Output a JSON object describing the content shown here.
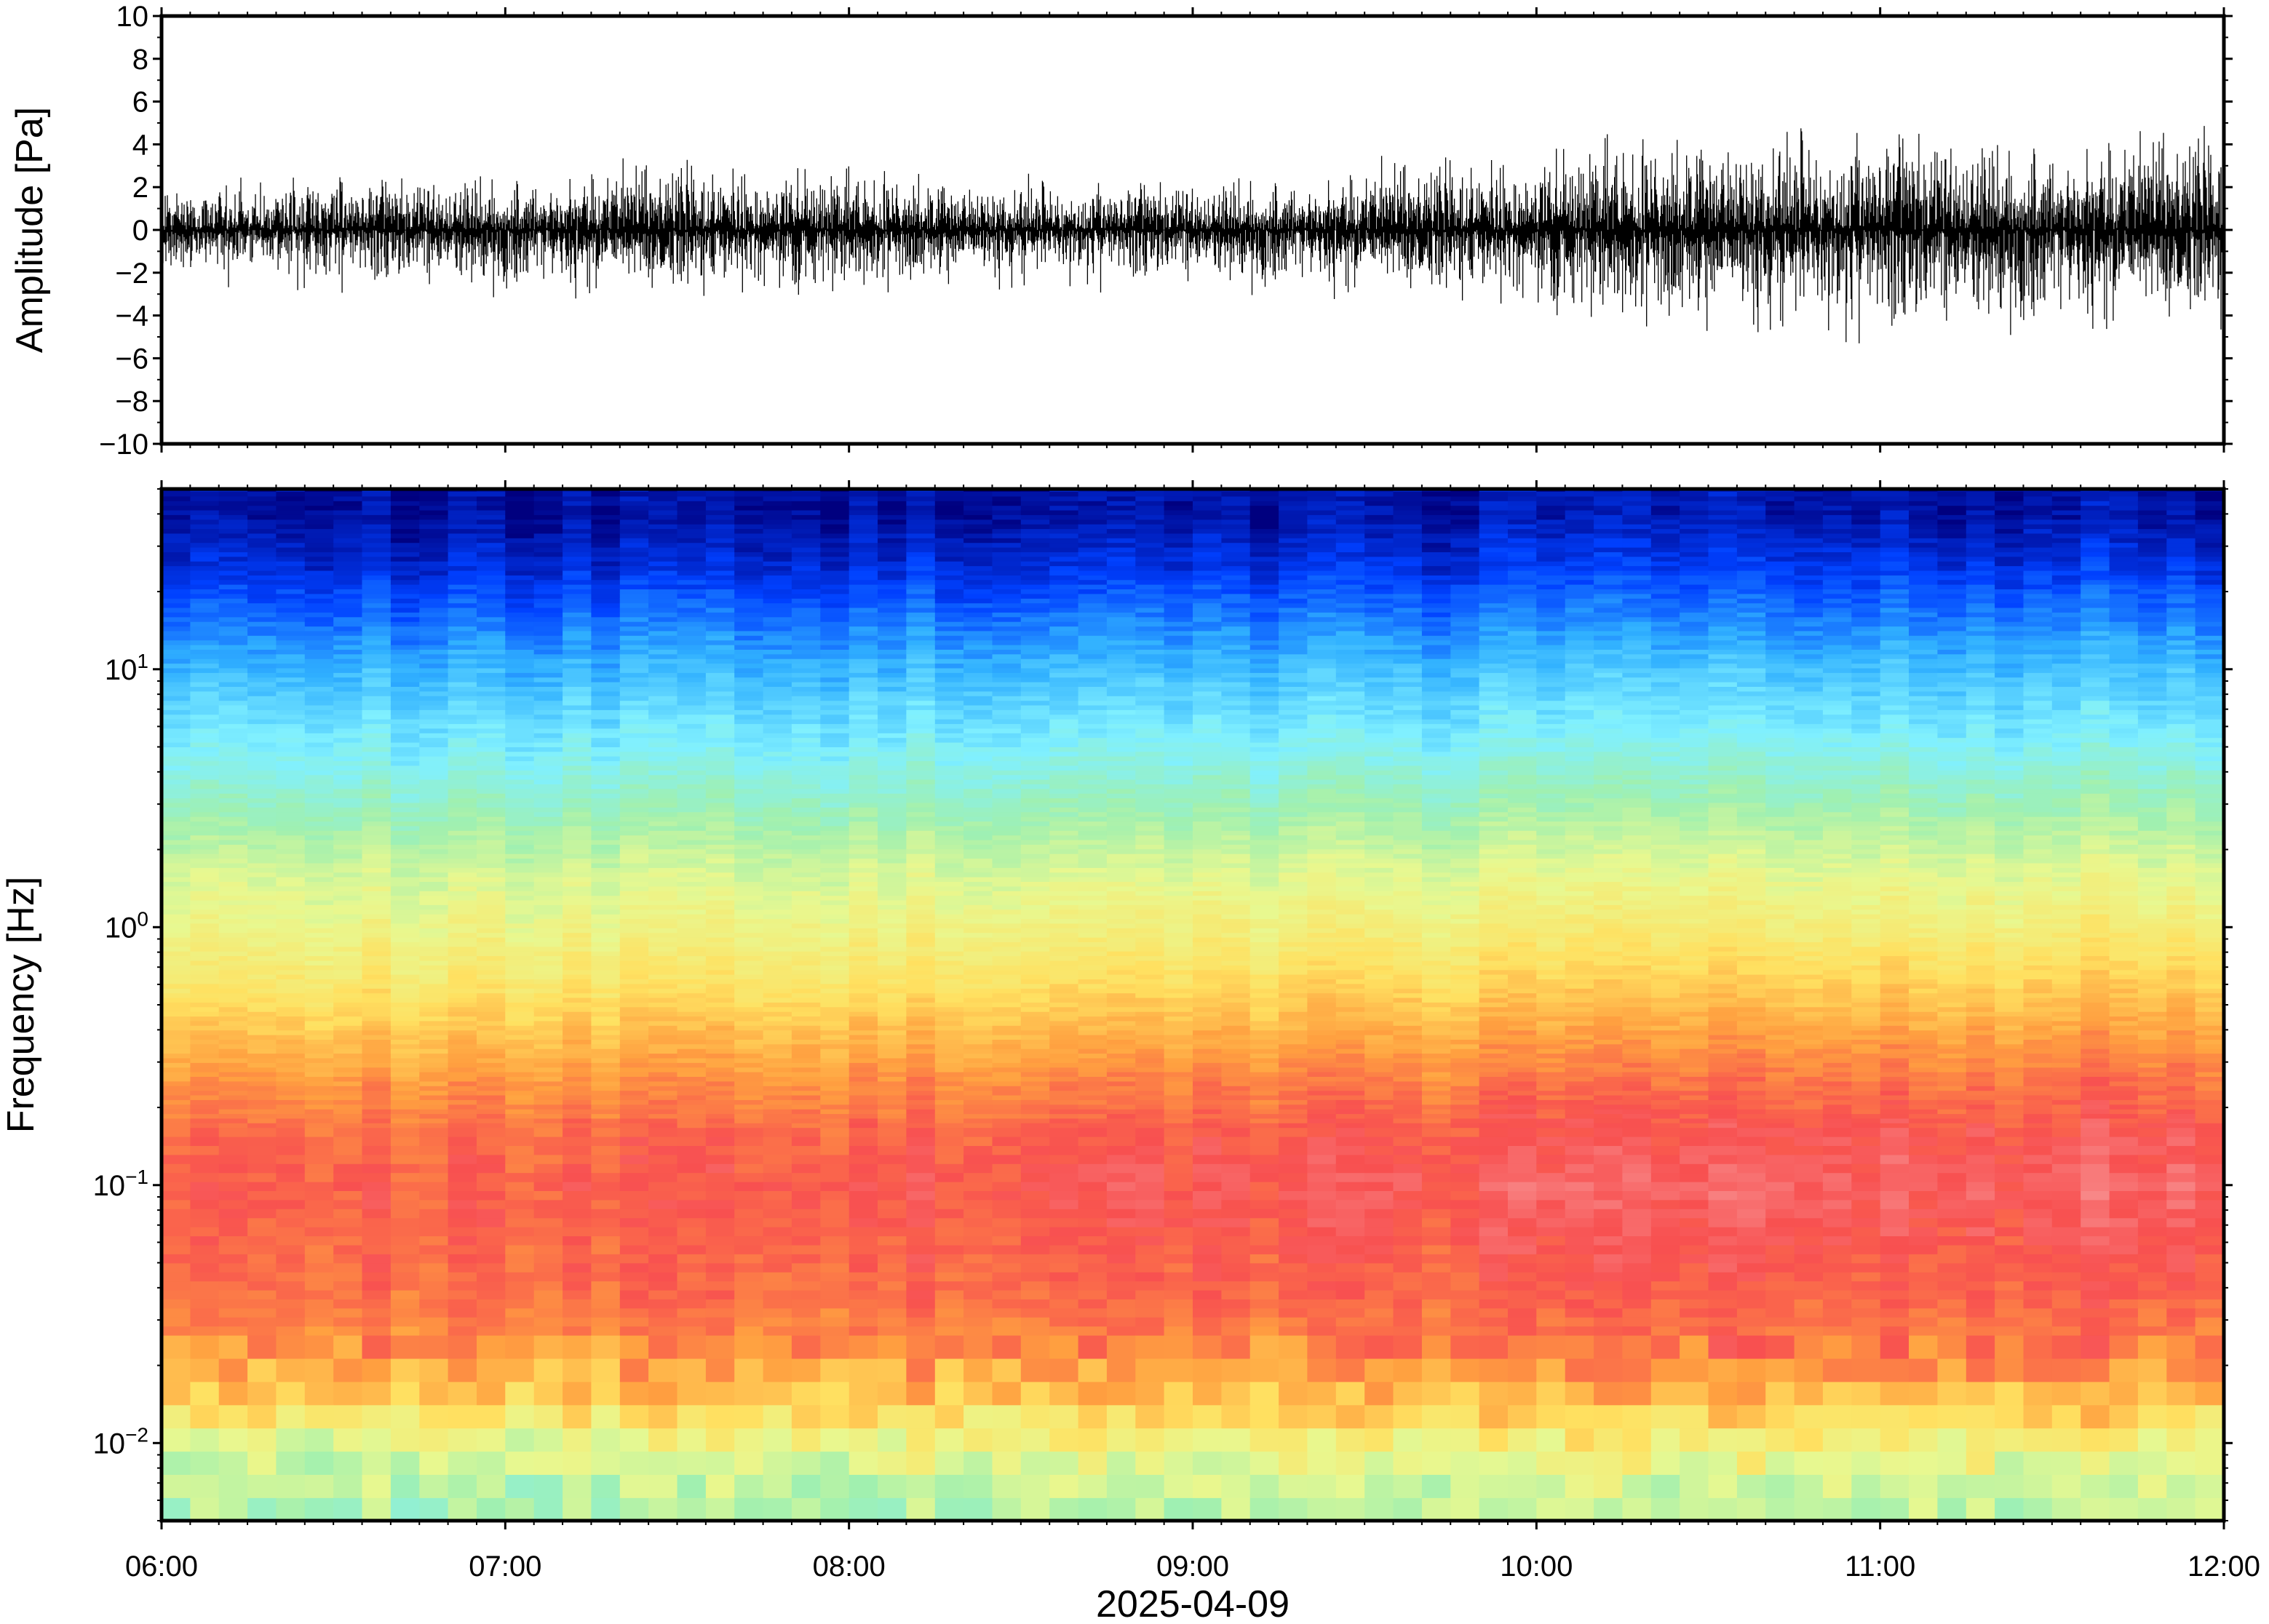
{
  "chart_data": [
    {
      "type": "line",
      "ylabel": "Amplitude [Pa]",
      "xlabel": "",
      "ylim": [
        -10,
        10
      ],
      "yticks": [
        "10",
        "8",
        "6",
        "4",
        "2",
        "0",
        "−2",
        "−4",
        "−6",
        "−8",
        "−10"
      ],
      "x_range": [
        "2025-04-09 06:00",
        "2025-04-09 12:00"
      ],
      "envelope": {
        "x": [
          "06:00",
          "06:30",
          "07:00",
          "07:30",
          "08:00",
          "08:30",
          "09:00",
          "09:30",
          "10:00",
          "10:30",
          "11:00",
          "11:30",
          "12:00"
        ],
        "typical_amplitude": [
          1.0,
          1.3,
          1.5,
          1.7,
          1.4,
          1.2,
          1.3,
          1.6,
          1.9,
          2.4,
          2.6,
          2.5,
          2.5
        ],
        "peak_amplitude": [
          2.5,
          3.0,
          3.3,
          3.5,
          3.0,
          3.0,
          3.0,
          3.5,
          4.0,
          5.0,
          5.5,
          5.0,
          4.5
        ]
      },
      "line_color": "#000000"
    },
    {
      "type": "heatmap",
      "ylabel": "Frequency [Hz]",
      "xlabel": "2025-04-09",
      "yscale": "log",
      "ylim": [
        0.005,
        50
      ],
      "yticks": [
        {
          "base": "10",
          "exp": "1",
          "value": 10
        },
        {
          "base": "10",
          "exp": "0",
          "value": 1
        },
        {
          "base": "10",
          "exp": "−1",
          "value": 0.1
        },
        {
          "base": "10",
          "exp": "−2",
          "value": 0.01
        }
      ],
      "xticks": [
        "06:00",
        "07:00",
        "08:00",
        "09:00",
        "10:00",
        "11:00",
        "12:00"
      ],
      "colormap": [
        "#00007f",
        "#0040ff",
        "#30b0ff",
        "#80f0ff",
        "#a0f0b0",
        "#e8f890",
        "#ffe060",
        "#ffa040",
        "#f85050",
        "#f8a0a0"
      ],
      "power_profile": {
        "log10_frequency": [
          -2.2,
          -2.0,
          -1.8,
          -1.6,
          -1.4,
          -1.2,
          -1.0,
          -0.8,
          -0.6,
          -0.4,
          -0.2,
          0.0,
          0.2,
          0.4,
          0.6,
          0.8,
          1.0,
          1.2,
          1.4,
          1.6
        ],
        "relative_power_0600": [
          0.45,
          0.55,
          0.7,
          0.8,
          0.84,
          0.85,
          0.86,
          0.84,
          0.78,
          0.7,
          0.62,
          0.57,
          0.52,
          0.44,
          0.36,
          0.3,
          0.23,
          0.15,
          0.07,
          0.02
        ],
        "relative_power_1200": [
          0.52,
          0.62,
          0.76,
          0.84,
          0.87,
          0.9,
          0.93,
          0.9,
          0.85,
          0.78,
          0.7,
          0.62,
          0.56,
          0.48,
          0.4,
          0.32,
          0.26,
          0.18,
          0.1,
          0.04
        ]
      }
    }
  ]
}
